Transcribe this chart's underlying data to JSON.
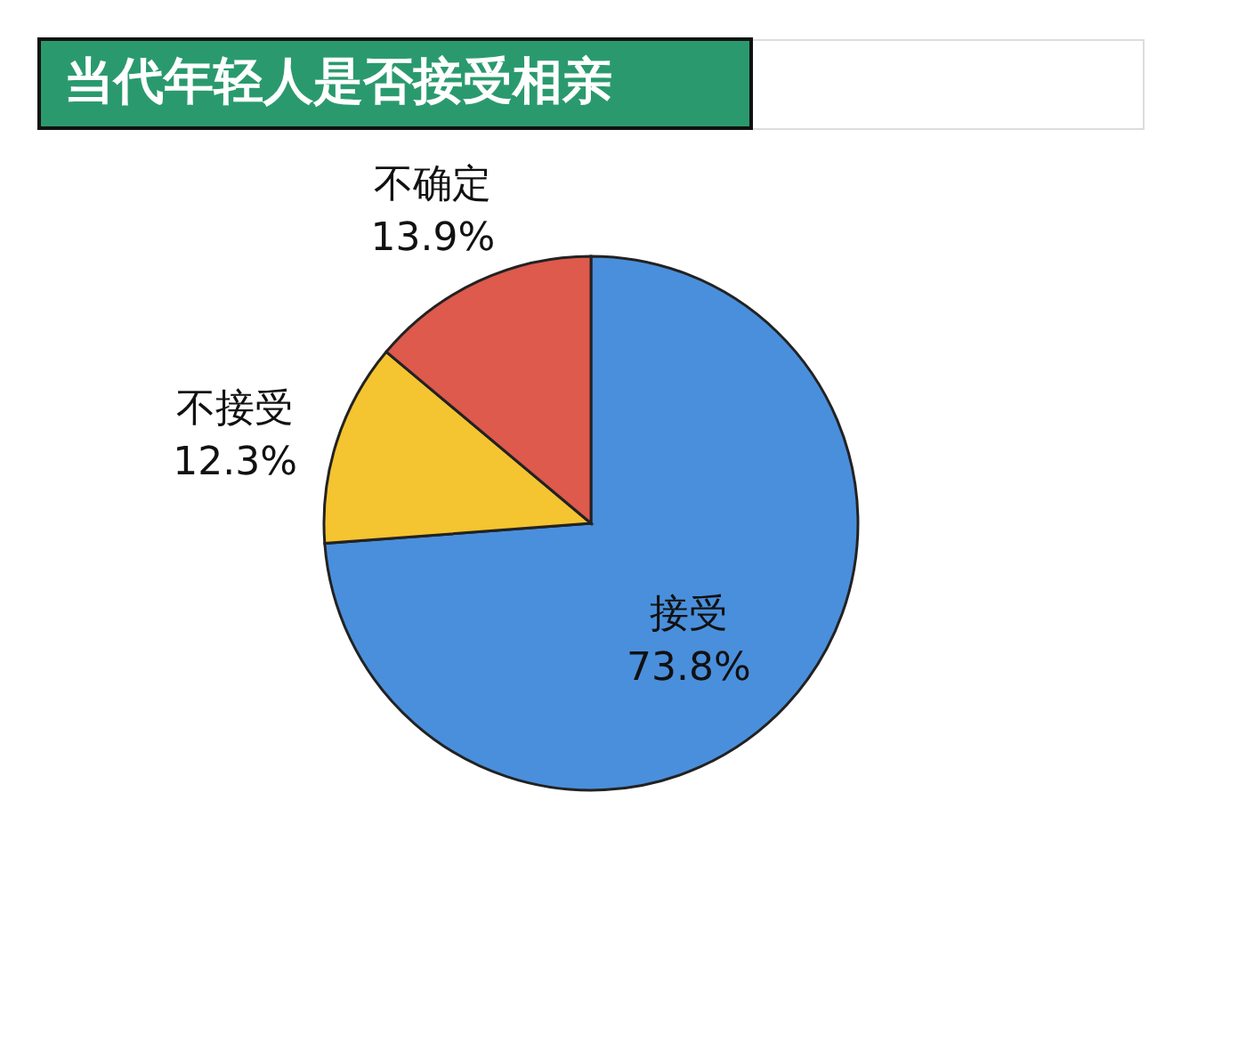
{
  "chart_data": {
    "type": "pie",
    "title": "当代年轻人是否接受相亲",
    "categories": [
      "接受",
      "不接受",
      "不确定"
    ],
    "values": [
      73.8,
      12.3,
      13.9
    ],
    "value_labels": [
      "73.8%",
      "12.3%",
      "13.9%"
    ],
    "colors": [
      "#4a8fdc",
      "#f4c431",
      "#dd5a4c"
    ],
    "legend": false
  }
}
